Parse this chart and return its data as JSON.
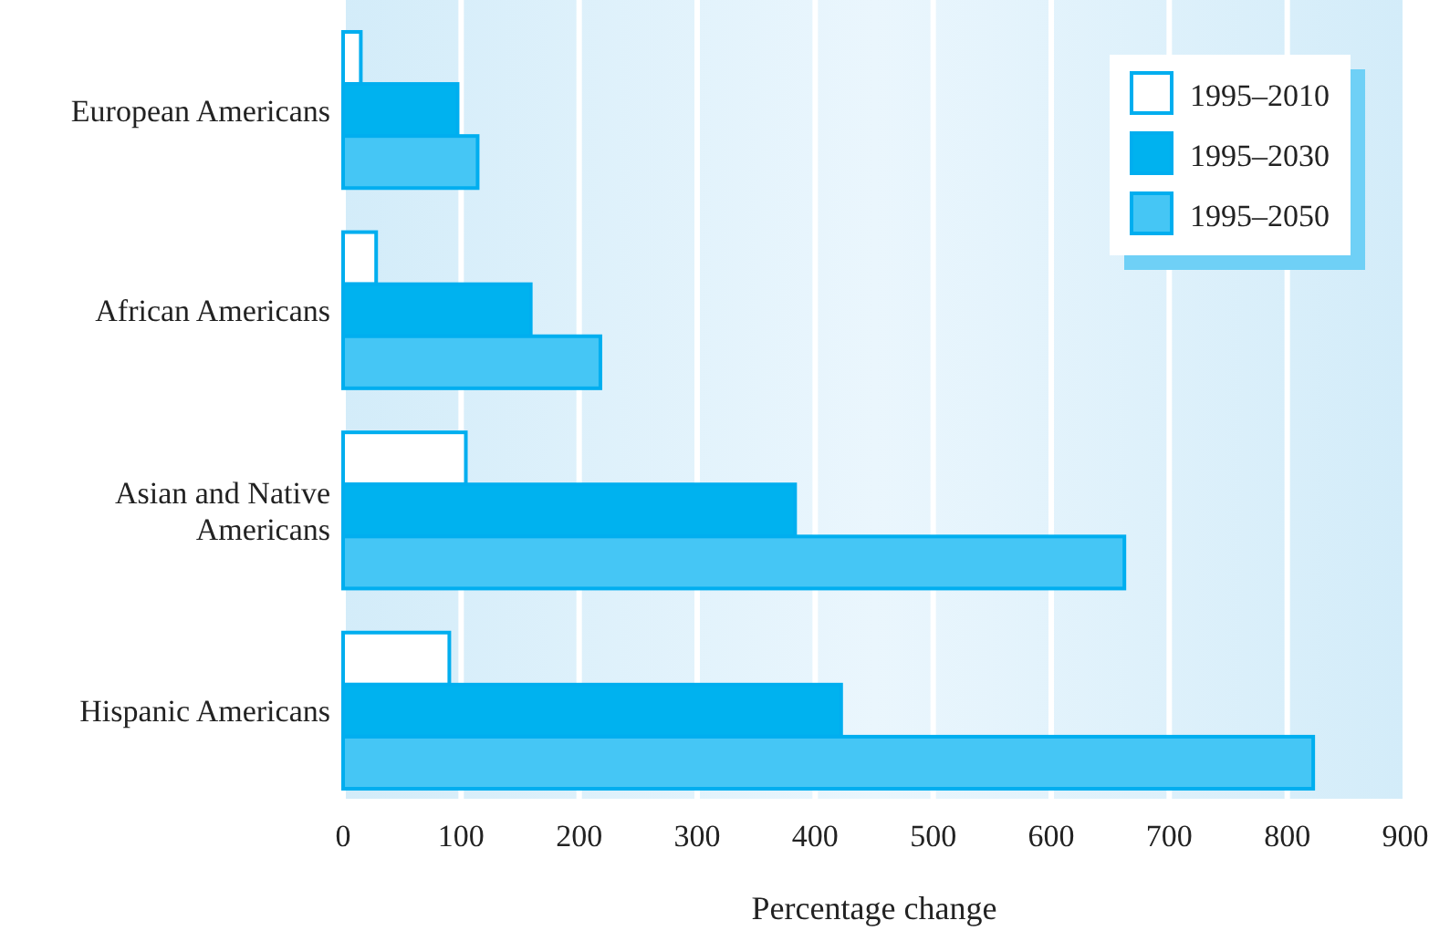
{
  "chart_data": {
    "type": "bar",
    "orientation": "horizontal",
    "categories": [
      "European Americans",
      "African Americans",
      "Asian and Native\nAmericans",
      "Hispanic Americans"
    ],
    "series": [
      {
        "name": "1995–2010",
        "color": "#ffffff",
        "values": [
          15,
          28,
          104,
          90
        ]
      },
      {
        "name": "1995–2030",
        "color": "#00b2ef",
        "values": [
          97,
          159,
          383,
          422
        ]
      },
      {
        "name": "1995–2050",
        "color": "#45c6f5",
        "values": [
          114,
          218,
          662,
          822
        ]
      }
    ],
    "xlabel": "Percentage change",
    "xlim": [
      0,
      900
    ],
    "xticks": [
      0,
      100,
      200,
      300,
      400,
      500,
      600,
      700,
      800,
      900
    ],
    "grid": "x",
    "legend": "top right"
  }
}
